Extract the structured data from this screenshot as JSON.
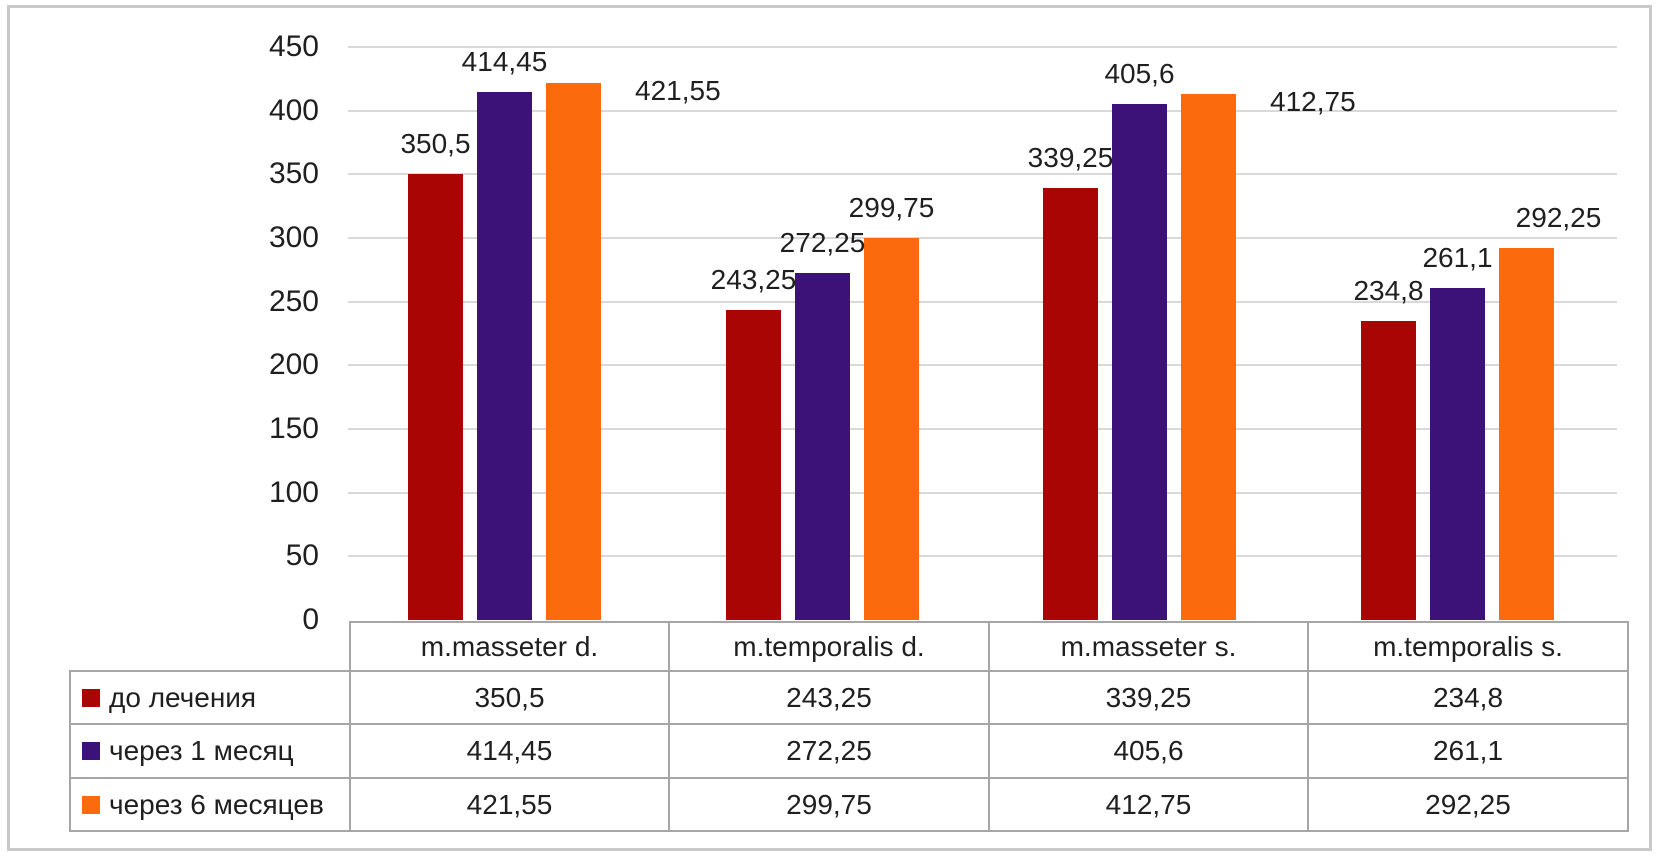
{
  "chart_data": {
    "type": "bar",
    "categories": [
      "m.masseter d.",
      "m.temporalis d.",
      "m.masseter s.",
      "m.temporalis s."
    ],
    "series": [
      {
        "name": "до лечения",
        "color": "#a90505",
        "values": [
          350.5,
          243.25,
          339.25,
          234.8
        ],
        "value_labels": [
          "350,5",
          "243,25",
          "339,25",
          "234,8"
        ],
        "label_placements": [
          "above",
          "above",
          "above",
          "above"
        ]
      },
      {
        "name": "через 1 месяц",
        "color": "#3c1178",
        "values": [
          414.45,
          272.25,
          405.6,
          261.1
        ],
        "value_labels": [
          "414,45",
          "272,25",
          "405,6",
          "261,1"
        ],
        "label_placements": [
          "above",
          "above",
          "above",
          "above"
        ]
      },
      {
        "name": "через 6 месяцев",
        "color": "#fb6a0d",
        "values": [
          421.55,
          299.75,
          412.75,
          292.25
        ],
        "value_labels": [
          "421,55",
          "299,75",
          "412,75",
          "292,25"
        ],
        "label_placements": [
          "right",
          "above",
          "right",
          "above_right"
        ]
      }
    ],
    "y_axis": {
      "min": 0,
      "max": 450,
      "step": 50,
      "tick_labels": [
        "0",
        "50",
        "100",
        "150",
        "200",
        "250",
        "300",
        "350",
        "400",
        "450"
      ]
    },
    "grid": true,
    "legend_position": "table-left",
    "decimal_separator": ",",
    "data_table": {
      "column_headers": [
        "m.masseter d.",
        "m.temporalis d.",
        "m.masseter s.",
        "m.temporalis s."
      ],
      "rows": [
        {
          "legend": "до лечения",
          "swatch_color": "#a90505",
          "values": [
            "350,5",
            "243,25",
            "339,25",
            "234,8"
          ]
        },
        {
          "legend": "через 1 месяц",
          "swatch_color": "#3c1178",
          "values": [
            "414,45",
            "272,25",
            "405,6",
            "261,1"
          ]
        },
        {
          "legend": "через 6 месяцев",
          "swatch_color": "#fb6a0d",
          "values": [
            "421,55",
            "299,75",
            "412,75",
            "292,25"
          ]
        }
      ]
    }
  },
  "colors": {
    "background": "#ffffff",
    "frame_border": "#c9c9c9",
    "table_border": "#a6a6a6",
    "gridline": "#d9d9d9",
    "text": "#1f1f1f"
  }
}
